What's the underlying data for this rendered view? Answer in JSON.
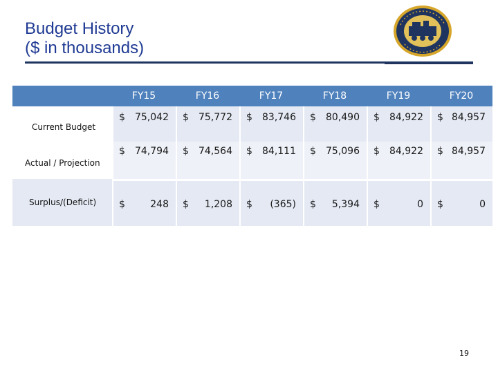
{
  "title": {
    "line1": "Budget History",
    "line2": "($ in thousands)"
  },
  "seal": {
    "text": "CITY OF HOUSTON TEXAS"
  },
  "colors": {
    "title": "#1f3a93",
    "header_bg": "#4f81bd",
    "row_bg": "#e4e9f3",
    "rule": "#1f3560"
  },
  "table": {
    "columns": [
      "FY15",
      "FY16",
      "FY17",
      "FY18",
      "FY19",
      "FY20"
    ],
    "rows": [
      {
        "label": "Current Budget",
        "values": [
          "75,042",
          "75,772",
          "83,746",
          "80,490",
          "84,922",
          "84,957"
        ]
      },
      {
        "label": "Actual / Projection",
        "values": [
          "74,794",
          "74,564",
          "84,111",
          "75,096",
          "84,922",
          "84,957"
        ]
      },
      {
        "label": "Surplus/(Deficit)",
        "values": [
          "248",
          "1,208",
          "(365)",
          "5,394",
          "0",
          "0"
        ]
      }
    ],
    "currency_symbol": "$"
  },
  "page_number": "19"
}
